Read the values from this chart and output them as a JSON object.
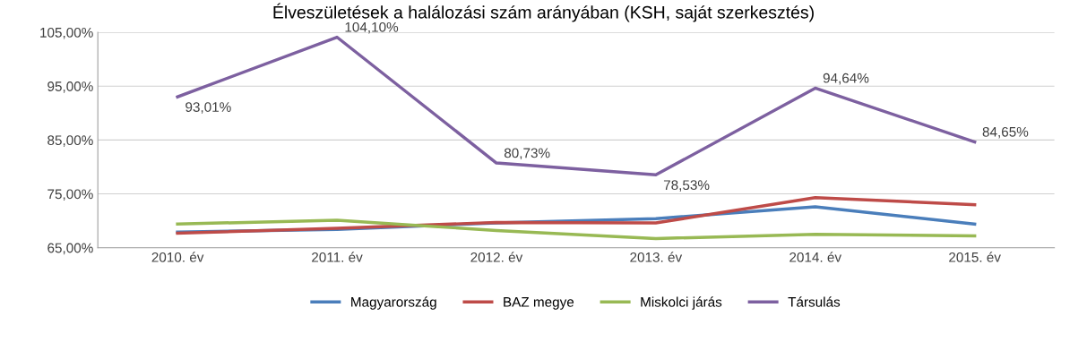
{
  "chart_data": {
    "type": "line",
    "title": "Élveszületések a halálozási szám arányában (KSH, saját szerkesztés)",
    "categories": [
      "2010. év",
      "2011. év",
      "2012. év",
      "2013. év",
      "2014. év",
      "2015. év"
    ],
    "series": [
      {
        "name": "Magyarország",
        "color": "#4a7ebb",
        "values": [
          67.9,
          68.4,
          69.6,
          70.4,
          72.6,
          69.4
        ]
      },
      {
        "name": "BAZ megye",
        "color": "#be4b48",
        "values": [
          67.7,
          68.6,
          69.7,
          69.6,
          74.3,
          73.0
        ]
      },
      {
        "name": "Miskolci járás",
        "color": "#98b954",
        "values": [
          69.4,
          70.1,
          68.2,
          66.7,
          67.5,
          67.2
        ]
      },
      {
        "name": "Társulás",
        "color": "#7d60a0",
        "values": [
          93.01,
          104.1,
          80.73,
          78.53,
          94.64,
          84.65
        ],
        "value_labels": [
          "93,01%",
          "104,10%",
          "80,73%",
          "78,53%",
          "94,64%",
          "84,65%"
        ]
      }
    ],
    "ylim": [
      65,
      105
    ],
    "yticks": [
      {
        "value": 65,
        "label": "65,00%"
      },
      {
        "value": 75,
        "label": "75,00%"
      },
      {
        "value": 85,
        "label": "85,00%"
      },
      {
        "value": 95,
        "label": "95,00%"
      },
      {
        "value": 105,
        "label": "105,00%"
      }
    ],
    "grid": "y",
    "legend": "bottom",
    "marker": "none",
    "line_style": "solid"
  }
}
